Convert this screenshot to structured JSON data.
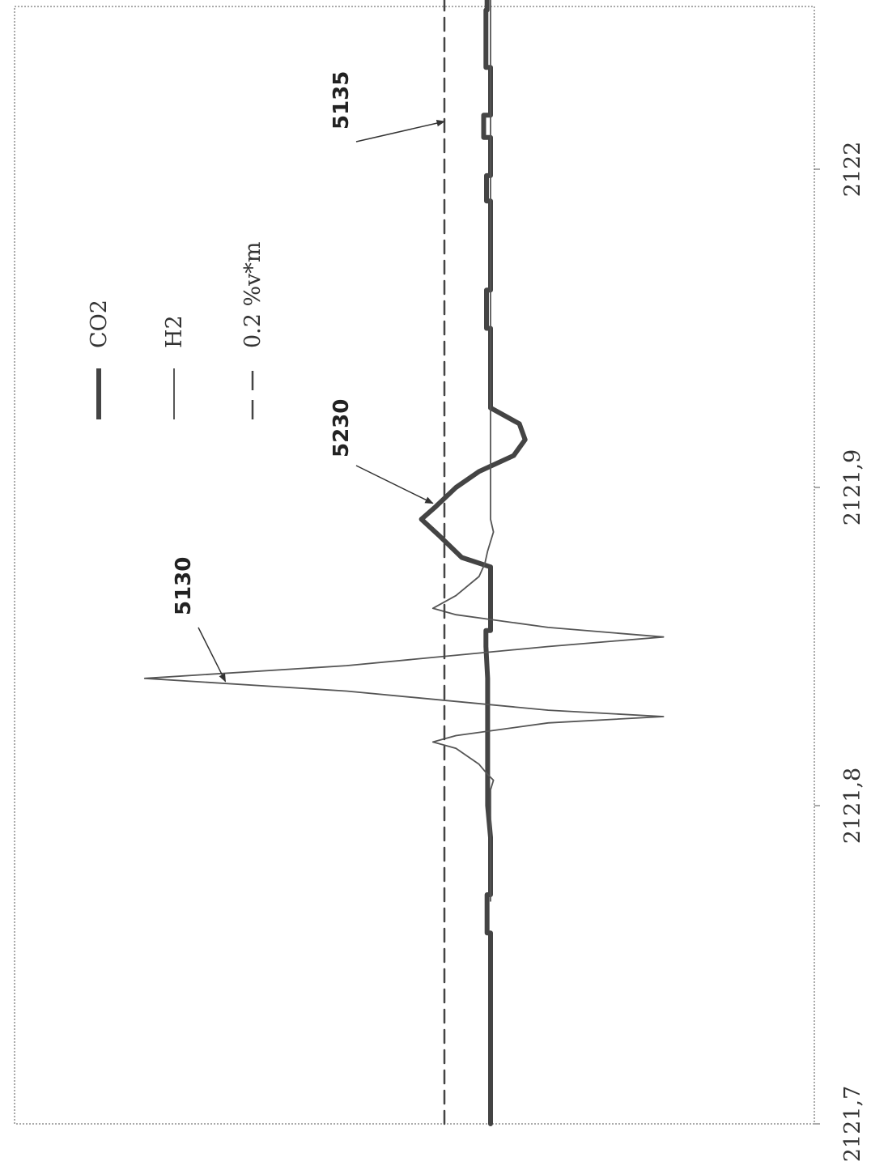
{
  "chart_data": {
    "type": "line",
    "x_tick_labels": [
      "2121,7",
      "2121,8",
      "2121,9",
      "2122"
    ],
    "xlim": [
      2121.7,
      2122.2
    ],
    "ylim": [
      -0.35,
      0.8
    ],
    "grid": false,
    "legend_position": "top-right",
    "series": [
      {
        "name": "CO2",
        "style": "thick-solid",
        "color": "#444444",
        "points": [
          [
            2121.7,
            0.0
          ],
          [
            2121.76,
            0.0
          ],
          [
            2121.76,
            0.006
          ],
          [
            2121.772,
            0.006
          ],
          [
            2121.772,
            0.0
          ],
          [
            2121.79,
            0.0
          ],
          [
            2121.8,
            0.005
          ],
          [
            2121.84,
            0.005
          ],
          [
            2121.85,
            0.008
          ],
          [
            2121.855,
            0.008
          ],
          [
            2121.855,
            0.0
          ],
          [
            2121.875,
            0.0
          ],
          [
            2121.878,
            0.05
          ],
          [
            2121.885,
            0.09
          ],
          [
            2121.89,
            0.12
          ],
          [
            2121.894,
            0.095
          ],
          [
            2121.9,
            0.06
          ],
          [
            2121.905,
            0.02
          ],
          [
            2121.91,
            -0.04
          ],
          [
            2121.915,
            -0.06
          ],
          [
            2121.92,
            -0.05
          ],
          [
            2121.925,
            0.0
          ],
          [
            2121.93,
            0.0
          ],
          [
            2121.95,
            0.0
          ],
          [
            2121.95,
            0.007
          ],
          [
            2121.962,
            0.007
          ],
          [
            2121.962,
            0.0
          ],
          [
            2121.99,
            0.0
          ],
          [
            2121.99,
            0.007
          ],
          [
            2121.998,
            0.007
          ],
          [
            2121.998,
            0.0
          ],
          [
            2122.01,
            0.0
          ],
          [
            2122.01,
            0.012
          ],
          [
            2122.017,
            0.012
          ],
          [
            2122.017,
            0.0
          ],
          [
            2122.032,
            0.0
          ],
          [
            2122.032,
            0.008
          ],
          [
            2122.05,
            0.008
          ],
          [
            2122.05,
            0.008
          ],
          [
            2122.05,
            0.006
          ],
          [
            2122.065,
            0.006
          ]
        ]
      },
      {
        "name": "H2",
        "style": "thin-solid",
        "color": "#555555",
        "points": [
          [
            2121.77,
            0.0
          ],
          [
            2121.805,
            0.0
          ],
          [
            2121.808,
            -0.005
          ],
          [
            2121.81,
            0.006
          ],
          [
            2121.813,
            0.02
          ],
          [
            2121.818,
            0.06
          ],
          [
            2121.82,
            0.1
          ],
          [
            2121.822,
            0.06
          ],
          [
            2121.826,
            -0.1
          ],
          [
            2121.828,
            -0.3
          ],
          [
            2121.83,
            -0.1
          ],
          [
            2121.836,
            0.25
          ],
          [
            2121.84,
            0.6
          ],
          [
            2121.844,
            0.25
          ],
          [
            2121.85,
            -0.1
          ],
          [
            2121.853,
            -0.3
          ],
          [
            2121.856,
            -0.1
          ],
          [
            2121.86,
            0.06
          ],
          [
            2121.862,
            0.1
          ],
          [
            2121.866,
            0.06
          ],
          [
            2121.872,
            0.02
          ],
          [
            2121.876,
            0.01
          ],
          [
            2121.88,
            0.005
          ],
          [
            2121.886,
            -0.005
          ],
          [
            2121.89,
            0.0
          ],
          [
            2121.95,
            0.0
          ],
          [
            2122.065,
            0.0
          ]
        ]
      },
      {
        "name": "0.2 %v*m",
        "style": "dashed",
        "color": "#444444",
        "points": [
          [
            2121.7,
            0.08
          ],
          [
            2122.065,
            0.08
          ]
        ]
      }
    ],
    "legend": [
      {
        "label": "CO2",
        "style": "thick-solid"
      },
      {
        "label": "H2",
        "style": "thin-solid"
      },
      {
        "label": "0.2 %v*m",
        "style": "dashed"
      }
    ],
    "annotations": [
      {
        "label": "5130",
        "target_x": 2121.839,
        "target_y": 0.46
      },
      {
        "label": "5230",
        "target_x": 2121.895,
        "target_y": 0.1
      },
      {
        "label": "5135",
        "target_x": 2122.015,
        "target_y": 0.08
      }
    ]
  }
}
